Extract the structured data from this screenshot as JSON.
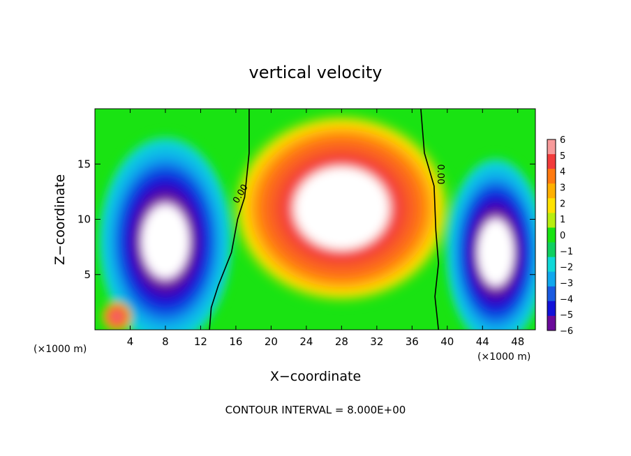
{
  "chart_data": {
    "type": "heatmap",
    "title": "vertical velocity",
    "xlabel": "X−coordinate",
    "ylabel": "Z−coordinate",
    "x_unit_left": "(×1000 m)",
    "x_unit_right": "(×1000 m)",
    "xlim": [
      0,
      50
    ],
    "ylim": [
      0,
      20
    ],
    "x_ticks": [
      "4",
      "8",
      "12",
      "16",
      "20",
      "24",
      "28",
      "32",
      "36",
      "40",
      "44",
      "48"
    ],
    "x_tick_values": [
      4,
      8,
      12,
      16,
      20,
      24,
      28,
      32,
      36,
      40,
      44,
      48
    ],
    "y_ticks": [
      "5",
      "10",
      "15"
    ],
    "y_tick_values": [
      5,
      10,
      15
    ],
    "colorbar": {
      "labels": [
        "6",
        "5",
        "4",
        "3",
        "2",
        "1",
        "0",
        "−1",
        "−2",
        "−3",
        "−4",
        "−5",
        "−6"
      ],
      "values": [
        6,
        5,
        4,
        3,
        2,
        1,
        0,
        -1,
        -2,
        -3,
        -4,
        -5,
        -6
      ],
      "colors": [
        "#f79a9a",
        "#f23b3b",
        "#ff7a10",
        "#ffb000",
        "#ffe200",
        "#b8ee10",
        "#19e312",
        "#10d060",
        "#10d8d8",
        "#10a8ee",
        "#1a5ae0",
        "#1212d8",
        "#6a0a9a"
      ]
    },
    "contour_labels": [
      "0.00",
      "0.00"
    ],
    "annotation": "CONTOUR INTERVAL = 8.000E+00",
    "features": [
      {
        "kind": "updraft",
        "x": 28,
        "z": 11,
        "peak": 8,
        "sx": 6.5,
        "sz": 4.5
      },
      {
        "kind": "downdraft",
        "x": 8,
        "z": 8,
        "peak": -8,
        "sx": 4.0,
        "sz": 5.0
      },
      {
        "kind": "downdraft",
        "x": 45.5,
        "z": 7,
        "peak": -8,
        "sx": 3.0,
        "sz": 4.5
      },
      {
        "kind": "updraft",
        "x": 2.5,
        "z": 1.2,
        "peak": 5,
        "sx": 1.0,
        "sz": 0.8
      }
    ],
    "grid": false
  }
}
